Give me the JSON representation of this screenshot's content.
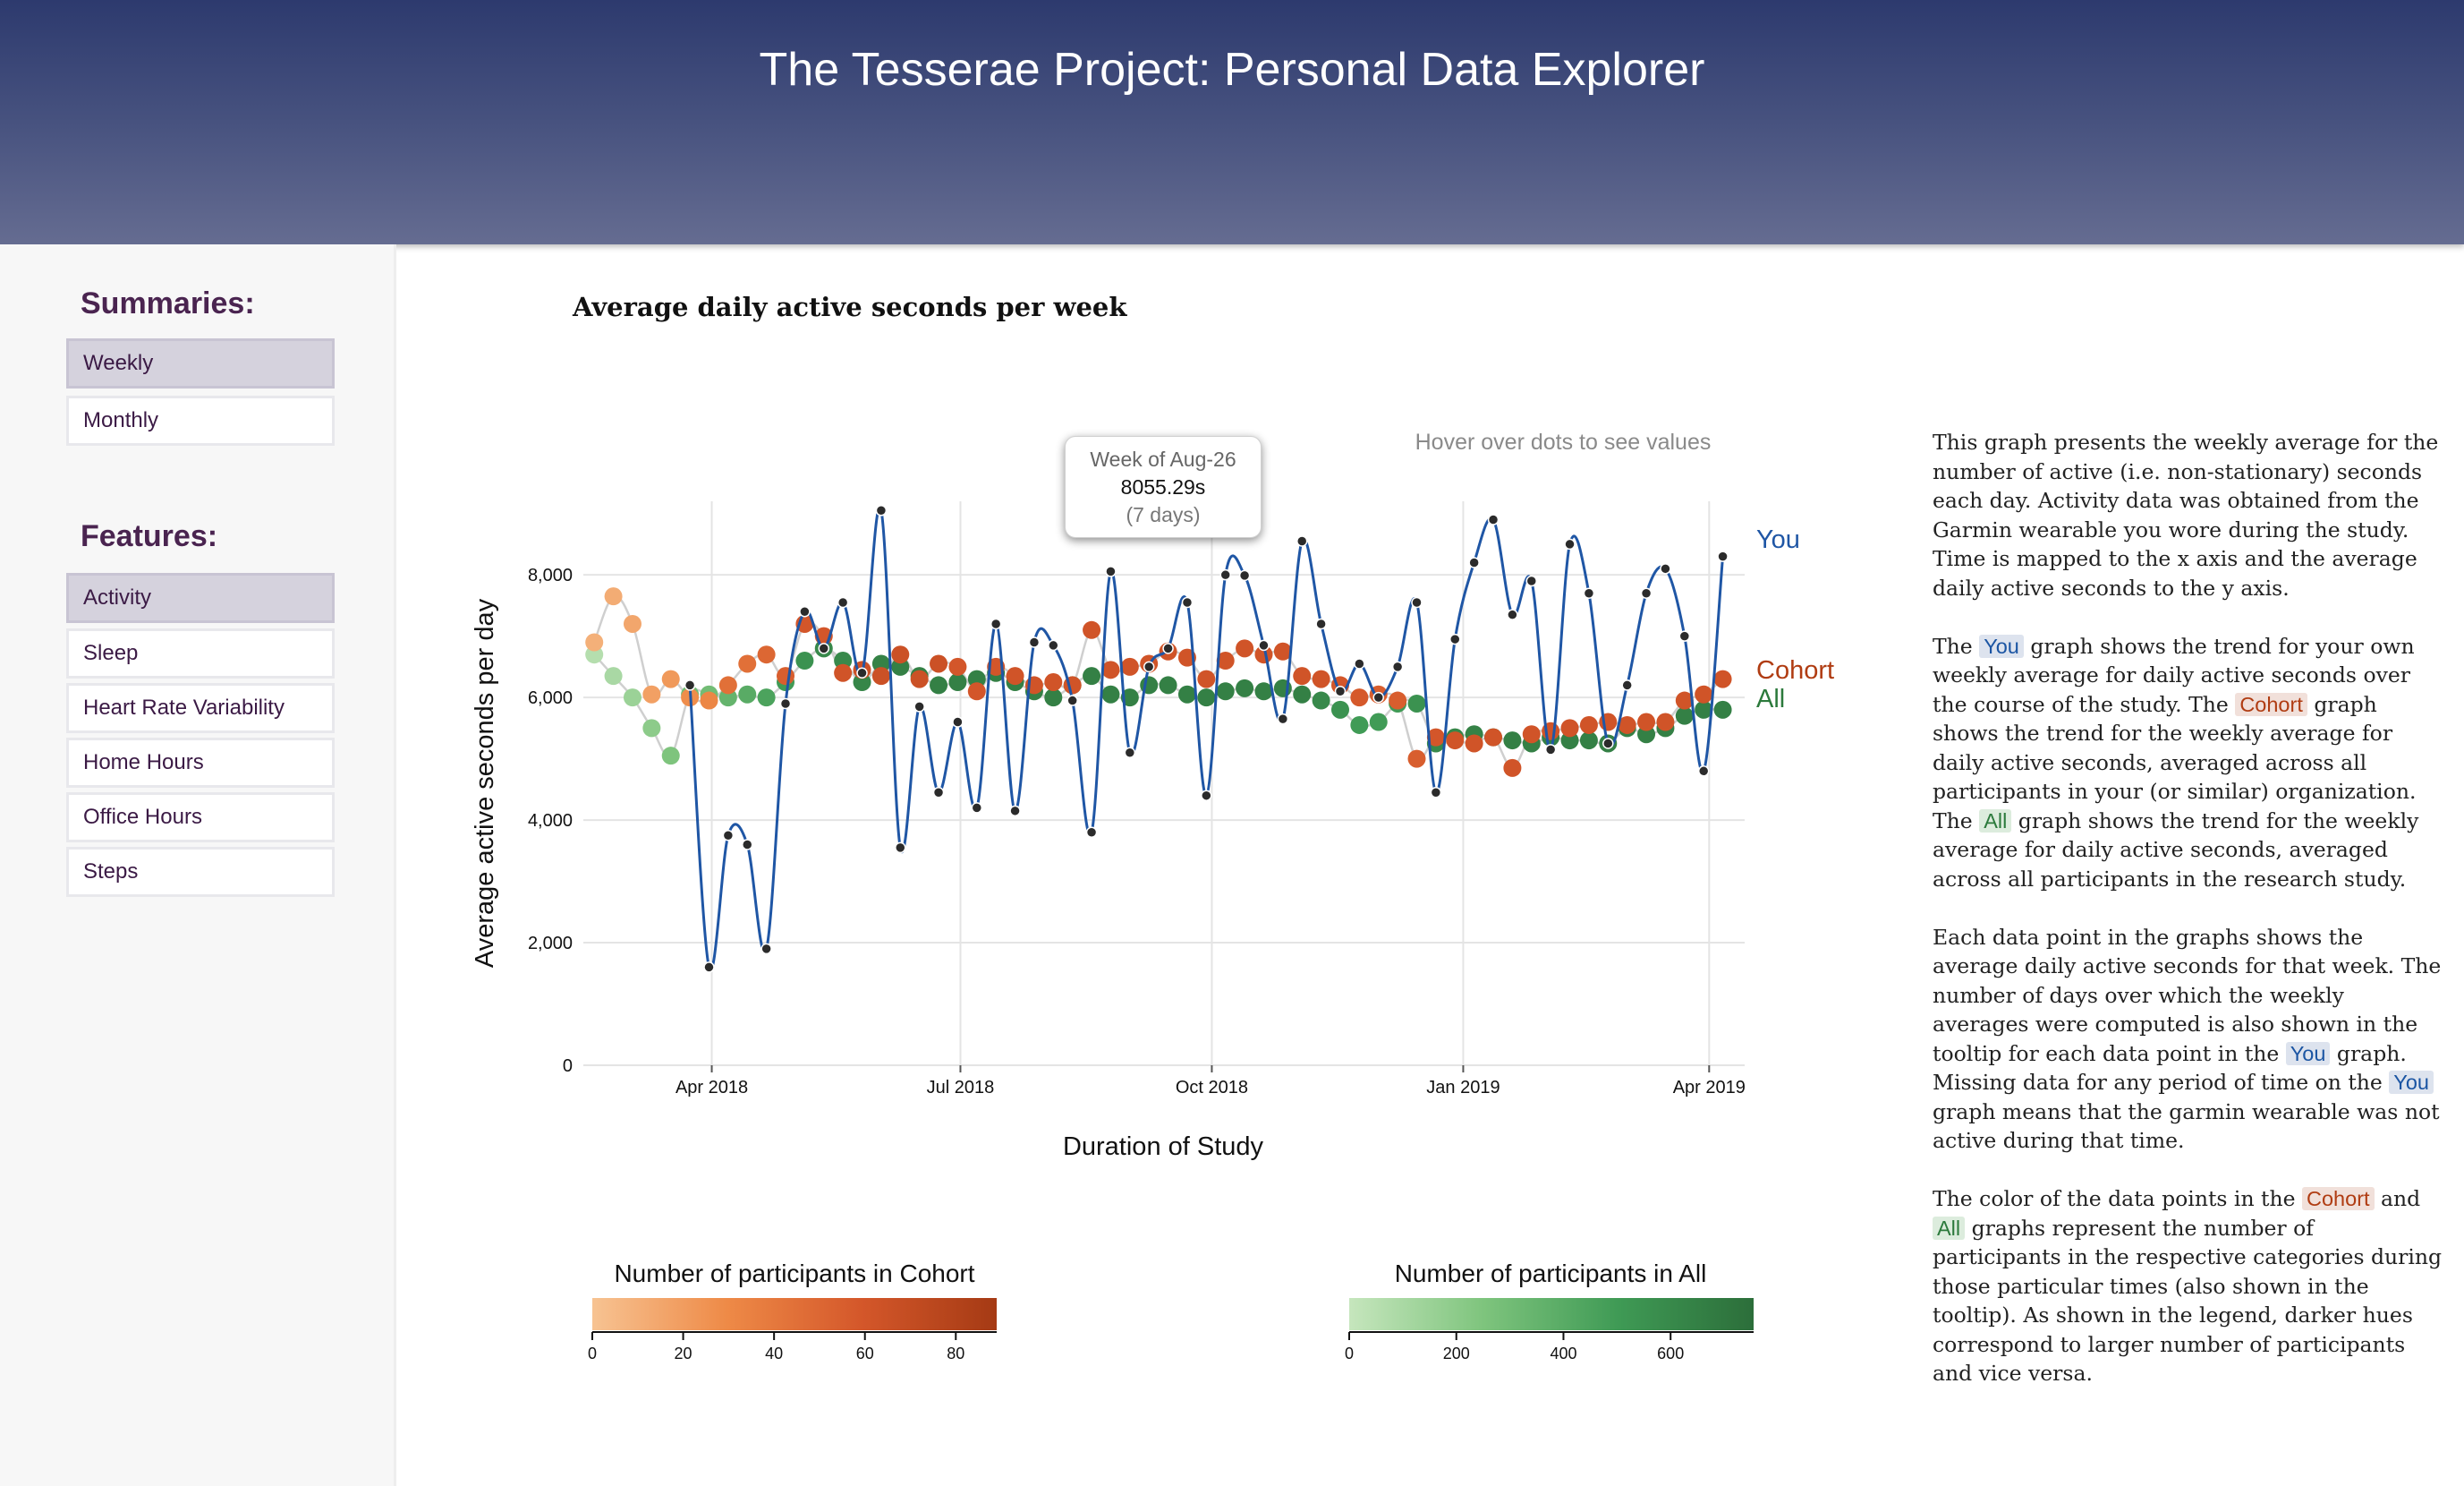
{
  "header": {
    "title": "The Tesserae Project: Personal Data Explorer"
  },
  "sidebar": {
    "summaries_heading": "Summaries:",
    "summaries": [
      {
        "label": "Weekly",
        "active": true
      },
      {
        "label": "Monthly",
        "active": false
      }
    ],
    "features_heading": "Features:",
    "features": [
      {
        "label": "Activity",
        "active": true
      },
      {
        "label": "Sleep",
        "active": false
      },
      {
        "label": "Heart Rate Variability",
        "active": false
      },
      {
        "label": "Home Hours",
        "active": false
      },
      {
        "label": "Office Hours",
        "active": false
      },
      {
        "label": "Steps",
        "active": false
      }
    ]
  },
  "main": {
    "chart_title": "Average daily active seconds per week",
    "hover_hint": "Hover over dots to see values",
    "tooltip": {
      "week": "Week of Aug-26",
      "value": "8055.29s",
      "days": "(7 days)"
    }
  },
  "colors": {
    "you": "#1f56a5",
    "cohort": "#b03c12",
    "all": "#2c7a3c",
    "cohort_scale": [
      "#f7c392",
      "#ee8a47",
      "#d4572a",
      "#a53a14"
    ],
    "all_scale": [
      "#c6e6bd",
      "#7ec47d",
      "#3f9a55",
      "#2c6e3a"
    ]
  },
  "description": {
    "p1": "This graph presents the weekly average for the number of active (i.e. non-stationary) seconds each day. Activity data was obtained from the Garmin wearable you wore during the study. Time is mapped to the x axis and the average daily active seconds to the y axis.",
    "p2": {
      "t1": "The ",
      "you": "You",
      "t2": " graph shows the trend for your own weekly average for daily active seconds over the course of the study. The ",
      "cohort": "Cohort",
      "t3": " graph shows the trend for the weekly average for daily active seconds, averaged across all participants in your (or similar) organization. The ",
      "all": "All",
      "t4": " graph shows the trend for the weekly average for daily active seconds, averaged across all participants in the research study."
    },
    "p3": {
      "t1": "Each data point in the graphs shows the average daily active seconds for that week. The number of days over which the weekly averages were computed is also shown in the tooltip for each data point in the ",
      "you1": "You",
      "t2": " graph. Missing data for any period of time on the ",
      "you2": "You",
      "t3": " graph means that the garmin wearable was not active during that time."
    },
    "p4": {
      "t1": "The color of the data points in the ",
      "cohort": "Cohort",
      "t2": " and ",
      "all": "All",
      "t3": " graphs represent the number of participants in the respective categories during those particular times (also shown in the tooltip). As shown in the legend, darker hues correspond to larger number of participants and vice versa."
    }
  },
  "chart_data": {
    "type": "line",
    "title": "Average daily active seconds per week",
    "xlabel": "Duration of Study",
    "ylabel": "Average active seconds per day",
    "x_axis": "weekly dates",
    "x_ticks": [
      {
        "date": "2018-04-01",
        "label": "Apr 2018"
      },
      {
        "date": "2018-07-01",
        "label": "Jul 2018"
      },
      {
        "date": "2018-10-01",
        "label": "Oct 2018"
      },
      {
        "date": "2019-01-01",
        "label": "Jan 2019"
      },
      {
        "date": "2019-04-01",
        "label": "Apr 2019"
      }
    ],
    "y_ticks": [
      0,
      2000,
      4000,
      6000,
      8000
    ],
    "y_tick_labels": [
      "0",
      "2,000",
      "4,000",
      "6,000",
      "8,000"
    ],
    "ylim": [
      0,
      9200
    ],
    "grid": true,
    "series": [
      {
        "name": "You",
        "x": [
          "2018-03-24",
          "2018-03-31",
          "2018-04-07",
          "2018-04-14",
          "2018-04-21",
          "2018-04-28",
          "2018-05-05",
          "2018-05-12",
          "2018-05-19",
          "2018-05-26",
          "2018-06-02",
          "2018-06-09",
          "2018-06-16",
          "2018-06-23",
          "2018-06-30",
          "2018-07-07",
          "2018-07-14",
          "2018-07-21",
          "2018-07-28",
          "2018-08-04",
          "2018-08-11",
          "2018-08-18",
          "2018-08-25",
          "2018-09-01",
          "2018-09-08",
          "2018-09-15",
          "2018-09-22",
          "2018-09-29",
          "2018-10-06",
          "2018-10-13",
          "2018-10-20",
          "2018-10-27",
          "2018-11-03",
          "2018-11-10",
          "2018-11-17",
          "2018-11-24",
          "2018-12-01",
          "2018-12-08",
          "2018-12-15",
          "2018-12-22",
          "2018-12-29",
          "2019-01-05",
          "2019-01-12",
          "2019-01-19",
          "2019-01-26",
          "2019-02-02",
          "2019-02-09",
          "2019-02-16",
          "2019-02-23",
          "2019-03-02",
          "2019-03-09",
          "2019-03-16",
          "2019-03-23",
          "2019-03-30",
          "2019-04-06"
        ],
        "values": [
          6200,
          1600,
          3750,
          3600,
          1900,
          5900,
          7400,
          6800,
          7550,
          6400,
          9050,
          3550,
          5850,
          4450,
          5600,
          4200,
          7200,
          4150,
          6900,
          6850,
          5950,
          3800,
          8055,
          5100,
          6500,
          6800,
          7550,
          4400,
          8000,
          7990,
          6850,
          5650,
          8550,
          7200,
          6100,
          6550,
          6000,
          6500,
          7550,
          4450,
          6950,
          8200,
          8900,
          7350,
          7900,
          5150,
          8500,
          7700,
          5250,
          6200,
          7700,
          8100,
          7000,
          4800,
          8300
        ]
      },
      {
        "name": "Cohort",
        "x": [
          "2018-02-17",
          "2018-02-24",
          "2018-03-03",
          "2018-03-10",
          "2018-03-17",
          "2018-03-24",
          "2018-03-31",
          "2018-04-07",
          "2018-04-14",
          "2018-04-21",
          "2018-04-28",
          "2018-05-05",
          "2018-05-12",
          "2018-05-19",
          "2018-05-26",
          "2018-06-02",
          "2018-06-09",
          "2018-06-16",
          "2018-06-23",
          "2018-06-30",
          "2018-07-07",
          "2018-07-14",
          "2018-07-21",
          "2018-07-28",
          "2018-08-04",
          "2018-08-11",
          "2018-08-18",
          "2018-08-25",
          "2018-09-01",
          "2018-09-08",
          "2018-09-15",
          "2018-09-22",
          "2018-09-29",
          "2018-10-06",
          "2018-10-13",
          "2018-10-20",
          "2018-10-27",
          "2018-11-03",
          "2018-11-10",
          "2018-11-17",
          "2018-11-24",
          "2018-12-01",
          "2018-12-08",
          "2018-12-15",
          "2018-12-22",
          "2018-12-29",
          "2019-01-05",
          "2019-01-12",
          "2019-01-19",
          "2019-01-26",
          "2019-02-02",
          "2019-02-09",
          "2019-02-16",
          "2019-02-23",
          "2019-03-02",
          "2019-03-09",
          "2019-03-16",
          "2019-03-23",
          "2019-03-30",
          "2019-04-06"
        ],
        "values": [
          6900,
          7650,
          7200,
          6050,
          6300,
          6000,
          5950,
          6200,
          6550,
          6700,
          6350,
          7200,
          7000,
          6400,
          6450,
          6350,
          6700,
          6300,
          6550,
          6500,
          6100,
          6500,
          6350,
          6200,
          6250,
          6200,
          7100,
          6450,
          6500,
          6550,
          6750,
          6650,
          6300,
          6600,
          6800,
          6700,
          6750,
          6350,
          6300,
          6200,
          6000,
          6050,
          5950,
          5000,
          5350,
          5300,
          5250,
          5350,
          4850,
          5400,
          5450,
          5500,
          5550,
          5600,
          5550,
          5600,
          5600,
          5950,
          6050,
          6300
        ],
        "participants": [
          10,
          12,
          15,
          18,
          22,
          28,
          32,
          45,
          45,
          50,
          55,
          60,
          60,
          62,
          65,
          65,
          65,
          65,
          65,
          60,
          60,
          60,
          62,
          62,
          62,
          62,
          62,
          62,
          62,
          62,
          62,
          62,
          62,
          62,
          62,
          62,
          62,
          62,
          62,
          60,
          58,
          55,
          55,
          55,
          60,
          62,
          62,
          62,
          62,
          62,
          62,
          62,
          62,
          62,
          62,
          62,
          62,
          62,
          62,
          62
        ]
      },
      {
        "name": "All",
        "x": [
          "2018-02-17",
          "2018-02-24",
          "2018-03-03",
          "2018-03-10",
          "2018-03-17",
          "2018-03-24",
          "2018-03-31",
          "2018-04-07",
          "2018-04-14",
          "2018-04-21",
          "2018-04-28",
          "2018-05-05",
          "2018-05-12",
          "2018-05-19",
          "2018-05-26",
          "2018-06-02",
          "2018-06-09",
          "2018-06-16",
          "2018-06-23",
          "2018-06-30",
          "2018-07-07",
          "2018-07-14",
          "2018-07-21",
          "2018-07-28",
          "2018-08-04",
          "2018-08-11",
          "2018-08-18",
          "2018-08-25",
          "2018-09-01",
          "2018-09-08",
          "2018-09-15",
          "2018-09-22",
          "2018-09-29",
          "2018-10-06",
          "2018-10-13",
          "2018-10-20",
          "2018-10-27",
          "2018-11-03",
          "2018-11-10",
          "2018-11-17",
          "2018-11-24",
          "2018-12-01",
          "2018-12-08",
          "2018-12-15",
          "2018-12-22",
          "2018-12-29",
          "2019-01-05",
          "2019-01-12",
          "2019-01-19",
          "2019-01-26",
          "2019-02-02",
          "2019-02-09",
          "2019-02-16",
          "2019-02-23",
          "2019-03-02",
          "2019-03-09",
          "2019-03-16",
          "2019-03-23",
          "2019-03-30",
          "2019-04-06"
        ],
        "values": [
          6700,
          6350,
          6000,
          5500,
          5050,
          6050,
          6050,
          6000,
          6050,
          6000,
          6250,
          6600,
          6800,
          6600,
          6250,
          6550,
          6500,
          6350,
          6200,
          6250,
          6300,
          6400,
          6250,
          6100,
          6000,
          6200,
          6350,
          6050,
          6000,
          6200,
          6200,
          6050,
          6000,
          6100,
          6150,
          6100,
          6150,
          6050,
          5950,
          5800,
          5550,
          5600,
          5900,
          5900,
          5250,
          5350,
          5400,
          5350,
          5300,
          5250,
          5350,
          5300,
          5300,
          5250,
          5500,
          5400,
          5500,
          5700,
          5800,
          5800
        ],
        "participants": [
          60,
          100,
          150,
          200,
          250,
          300,
          300,
          350,
          400,
          450,
          500,
          550,
          600,
          600,
          620,
          640,
          650,
          650,
          650,
          650,
          650,
          650,
          650,
          650,
          650,
          650,
          650,
          650,
          650,
          650,
          650,
          650,
          650,
          650,
          650,
          650,
          650,
          650,
          600,
          550,
          500,
          500,
          500,
          550,
          600,
          620,
          640,
          640,
          650,
          650,
          650,
          650,
          650,
          650,
          650,
          650,
          650,
          650,
          650,
          650
        ]
      }
    ],
    "legends": [
      {
        "title": "Number of participants in Cohort",
        "ticks": [
          0,
          20,
          40,
          60,
          80
        ],
        "max": 89
      },
      {
        "title": "Number of participants in All",
        "ticks": [
          0,
          200,
          400,
          600
        ],
        "max": 755
      }
    ]
  }
}
